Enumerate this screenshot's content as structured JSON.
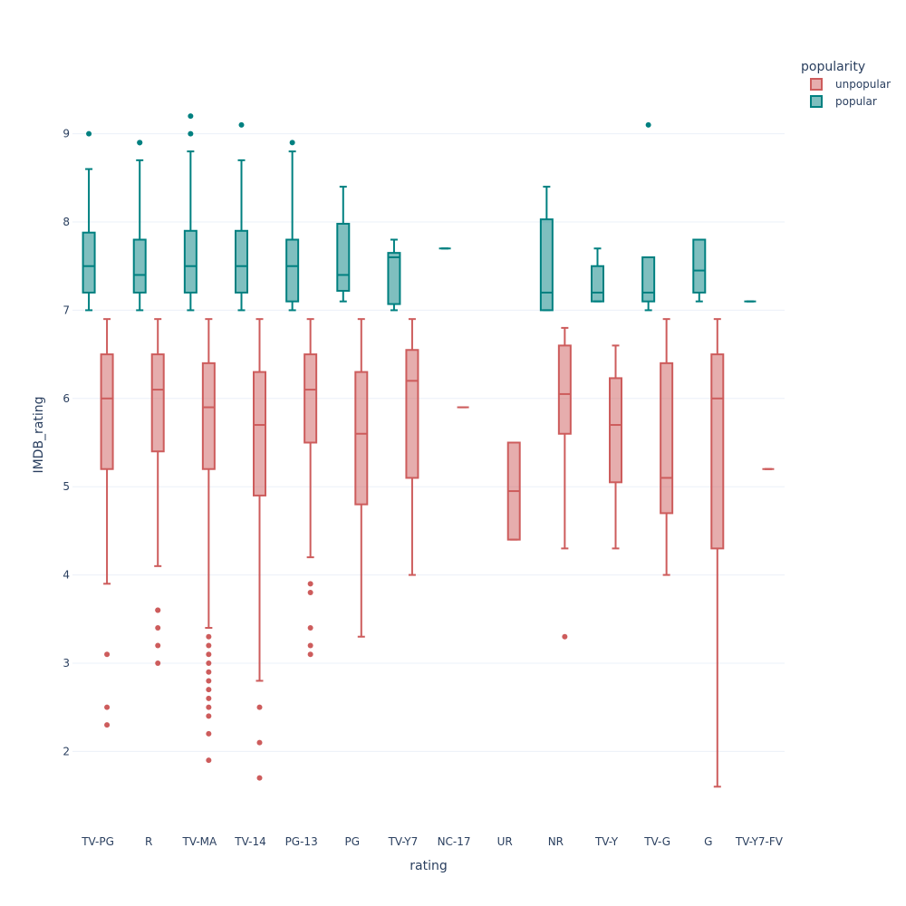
{
  "chart_data": {
    "type": "box",
    "xlabel": "rating",
    "ylabel": "IMDB_rating",
    "ylim": [
      1.1,
      9.9
    ],
    "yticks": [
      2,
      3,
      4,
      5,
      6,
      7,
      8,
      9
    ],
    "grid": true,
    "legend_title": "popularity",
    "legend_position": "top-right",
    "categories": [
      "TV-PG",
      "R",
      "TV-MA",
      "TV-14",
      "PG-13",
      "PG",
      "TV-Y7",
      "NC-17",
      "UR",
      "NR",
      "TV-Y",
      "TV-G",
      "G",
      "TV-Y7-FV"
    ],
    "series": [
      {
        "name": "unpopular",
        "color": "#cd5c5c",
        "fill": "rgba(205,92,92,0.5)",
        "boxes": [
          {
            "category": "TV-PG",
            "min": 3.9,
            "q1": 5.2,
            "median": 6.0,
            "q3": 6.5,
            "max": 6.9,
            "outliers": [
              3.1,
              2.5,
              2.3
            ]
          },
          {
            "category": "R",
            "min": 4.1,
            "q1": 5.4,
            "median": 6.1,
            "q3": 6.5,
            "max": 6.9,
            "outliers": [
              3.6,
              3.6,
              3.4,
              3.2,
              3.0
            ]
          },
          {
            "category": "TV-MA",
            "min": 3.4,
            "q1": 5.2,
            "median": 5.9,
            "q3": 6.4,
            "max": 6.9,
            "outliers": [
              3.3,
              3.2,
              3.1,
              3.0,
              2.9,
              2.8,
              2.7,
              2.6,
              2.5,
              2.4,
              2.2,
              1.9
            ]
          },
          {
            "category": "TV-14",
            "min": 2.8,
            "q1": 4.9,
            "median": 5.7,
            "q3": 6.3,
            "max": 6.9,
            "outliers": [
              2.5,
              2.1,
              1.7
            ]
          },
          {
            "category": "PG-13",
            "min": 4.2,
            "q1": 5.5,
            "median": 6.1,
            "q3": 6.5,
            "max": 6.9,
            "outliers": [
              3.9,
              3.8,
              3.4,
              3.2,
              3.1
            ]
          },
          {
            "category": "PG",
            "min": 3.3,
            "q1": 4.8,
            "median": 5.6,
            "q3": 6.3,
            "max": 6.9,
            "outliers": []
          },
          {
            "category": "TV-Y7",
            "min": 4.0,
            "q1": 5.1,
            "median": 6.2,
            "q3": 6.55,
            "max": 6.9,
            "outliers": []
          },
          {
            "category": "NC-17",
            "min": 5.9,
            "q1": 5.9,
            "median": 5.9,
            "q3": 5.9,
            "max": 5.9,
            "outliers": []
          },
          {
            "category": "UR",
            "min": 4.4,
            "q1": 4.4,
            "median": 4.95,
            "q3": 5.5,
            "max": 5.5,
            "outliers": []
          },
          {
            "category": "NR",
            "min": 4.3,
            "q1": 5.6,
            "median": 6.05,
            "q3": 6.6,
            "max": 6.8,
            "outliers": [
              3.3
            ]
          },
          {
            "category": "TV-Y",
            "min": 4.3,
            "q1": 5.05,
            "median": 5.7,
            "q3": 6.23,
            "max": 6.6,
            "outliers": []
          },
          {
            "category": "TV-G",
            "min": 4.0,
            "q1": 4.7,
            "median": 5.1,
            "q3": 6.4,
            "max": 6.9,
            "outliers": []
          },
          {
            "category": "G",
            "min": 1.6,
            "q1": 4.3,
            "median": 6.0,
            "q3": 6.5,
            "max": 6.9,
            "outliers": []
          },
          {
            "category": "TV-Y7-FV",
            "min": 5.2,
            "q1": 5.2,
            "median": 5.2,
            "q3": 5.2,
            "max": 5.2,
            "outliers": []
          }
        ]
      },
      {
        "name": "popular",
        "color": "#008080",
        "fill": "rgba(0,128,128,0.5)",
        "boxes": [
          {
            "category": "TV-PG",
            "min": 7.0,
            "q1": 7.2,
            "median": 7.5,
            "q3": 7.88,
            "max": 8.6,
            "outliers": [
              9.0
            ]
          },
          {
            "category": "R",
            "min": 7.0,
            "q1": 7.2,
            "median": 7.4,
            "q3": 7.8,
            "max": 8.7,
            "outliers": [
              8.9,
              8.9
            ]
          },
          {
            "category": "TV-MA",
            "min": 7.0,
            "q1": 7.2,
            "median": 7.5,
            "q3": 7.9,
            "max": 8.8,
            "outliers": [
              9.2,
              9.0
            ]
          },
          {
            "category": "TV-14",
            "min": 7.0,
            "q1": 7.2,
            "median": 7.5,
            "q3": 7.9,
            "max": 8.7,
            "outliers": [
              9.1
            ]
          },
          {
            "category": "PG-13",
            "min": 7.0,
            "q1": 7.1,
            "median": 7.5,
            "q3": 7.8,
            "max": 8.8,
            "outliers": [
              8.9
            ]
          },
          {
            "category": "PG",
            "min": 7.1,
            "q1": 7.22,
            "median": 7.4,
            "q3": 7.98,
            "max": 8.4,
            "outliers": []
          },
          {
            "category": "TV-Y7",
            "min": 7.0,
            "q1": 7.07,
            "median": 7.6,
            "q3": 7.65,
            "max": 7.8,
            "outliers": []
          },
          {
            "category": "NC-17",
            "min": 7.7,
            "q1": 7.7,
            "median": 7.7,
            "q3": 7.7,
            "max": 7.7,
            "outliers": []
          },
          {
            "category": "NR",
            "min": 7.0,
            "q1": 7.0,
            "median": 7.2,
            "q3": 8.03,
            "max": 8.4,
            "outliers": []
          },
          {
            "category": "TV-Y",
            "min": 7.1,
            "q1": 7.1,
            "median": 7.2,
            "q3": 7.5,
            "max": 7.7,
            "outliers": []
          },
          {
            "category": "TV-G",
            "min": 7.0,
            "q1": 7.1,
            "median": 7.2,
            "q3": 7.6,
            "max": 7.6,
            "outliers": [
              9.1
            ]
          },
          {
            "category": "G",
            "min": 7.1,
            "q1": 7.2,
            "median": 7.45,
            "q3": 7.8,
            "max": 7.8,
            "outliers": []
          },
          {
            "category": "TV-Y7-FV",
            "min": 7.1,
            "q1": 7.1,
            "median": 7.1,
            "q3": 7.1,
            "max": 7.1,
            "outliers": []
          }
        ]
      }
    ]
  }
}
